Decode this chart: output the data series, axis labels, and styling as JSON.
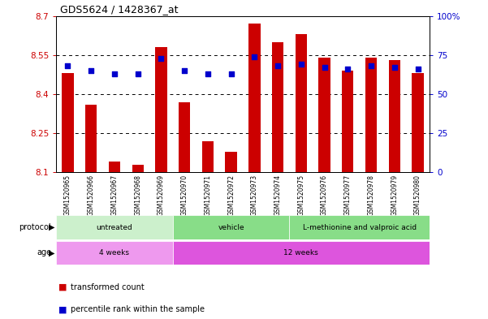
{
  "title": "GDS5624 / 1428367_at",
  "samples": [
    "GSM1520965",
    "GSM1520966",
    "GSM1520967",
    "GSM1520968",
    "GSM1520969",
    "GSM1520970",
    "GSM1520971",
    "GSM1520972",
    "GSM1520973",
    "GSM1520974",
    "GSM1520975",
    "GSM1520976",
    "GSM1520977",
    "GSM1520978",
    "GSM1520979",
    "GSM1520980"
  ],
  "bar_values": [
    8.48,
    8.36,
    8.14,
    8.13,
    8.58,
    8.37,
    8.22,
    8.18,
    8.67,
    8.6,
    8.63,
    8.54,
    8.49,
    8.54,
    8.53,
    8.48
  ],
  "dot_values": [
    68,
    65,
    63,
    63,
    73,
    65,
    63,
    63,
    74,
    68,
    69,
    67,
    66,
    68,
    67,
    66
  ],
  "ymin": 8.1,
  "ymax": 8.7,
  "yticks": [
    8.1,
    8.25,
    8.4,
    8.55,
    8.7
  ],
  "ytick_labels": [
    "8.1",
    "8.25",
    "8.4",
    "8.55",
    "8.7"
  ],
  "right_ytick_pcts": [
    0,
    25,
    50,
    75,
    100
  ],
  "right_ylabels": [
    "0",
    "25",
    "50",
    "75",
    "100%"
  ],
  "bar_color": "#cc0000",
  "dot_color": "#0000cc",
  "protocol_groups": [
    {
      "label": "untreated",
      "start": 0,
      "end": 4,
      "color": "#ccf0cc"
    },
    {
      "label": "vehicle",
      "start": 5,
      "end": 9,
      "color": "#88dd88"
    },
    {
      "label": "L-methionine and valproic acid",
      "start": 10,
      "end": 15,
      "color": "#88dd88"
    }
  ],
  "age_groups": [
    {
      "label": "4 weeks",
      "start": 0,
      "end": 4,
      "color": "#ee99ee"
    },
    {
      "label": "12 weeks",
      "start": 5,
      "end": 15,
      "color": "#dd55dd"
    }
  ],
  "legend_bar_label": "transformed count",
  "legend_dot_label": "percentile rank within the sample",
  "left_label_color": "#cc0000",
  "right_label_color": "#0000cc",
  "xtick_bg_color": "#d0d0d0",
  "grid_dotted_ticks": [
    8.25,
    8.4,
    8.55
  ]
}
